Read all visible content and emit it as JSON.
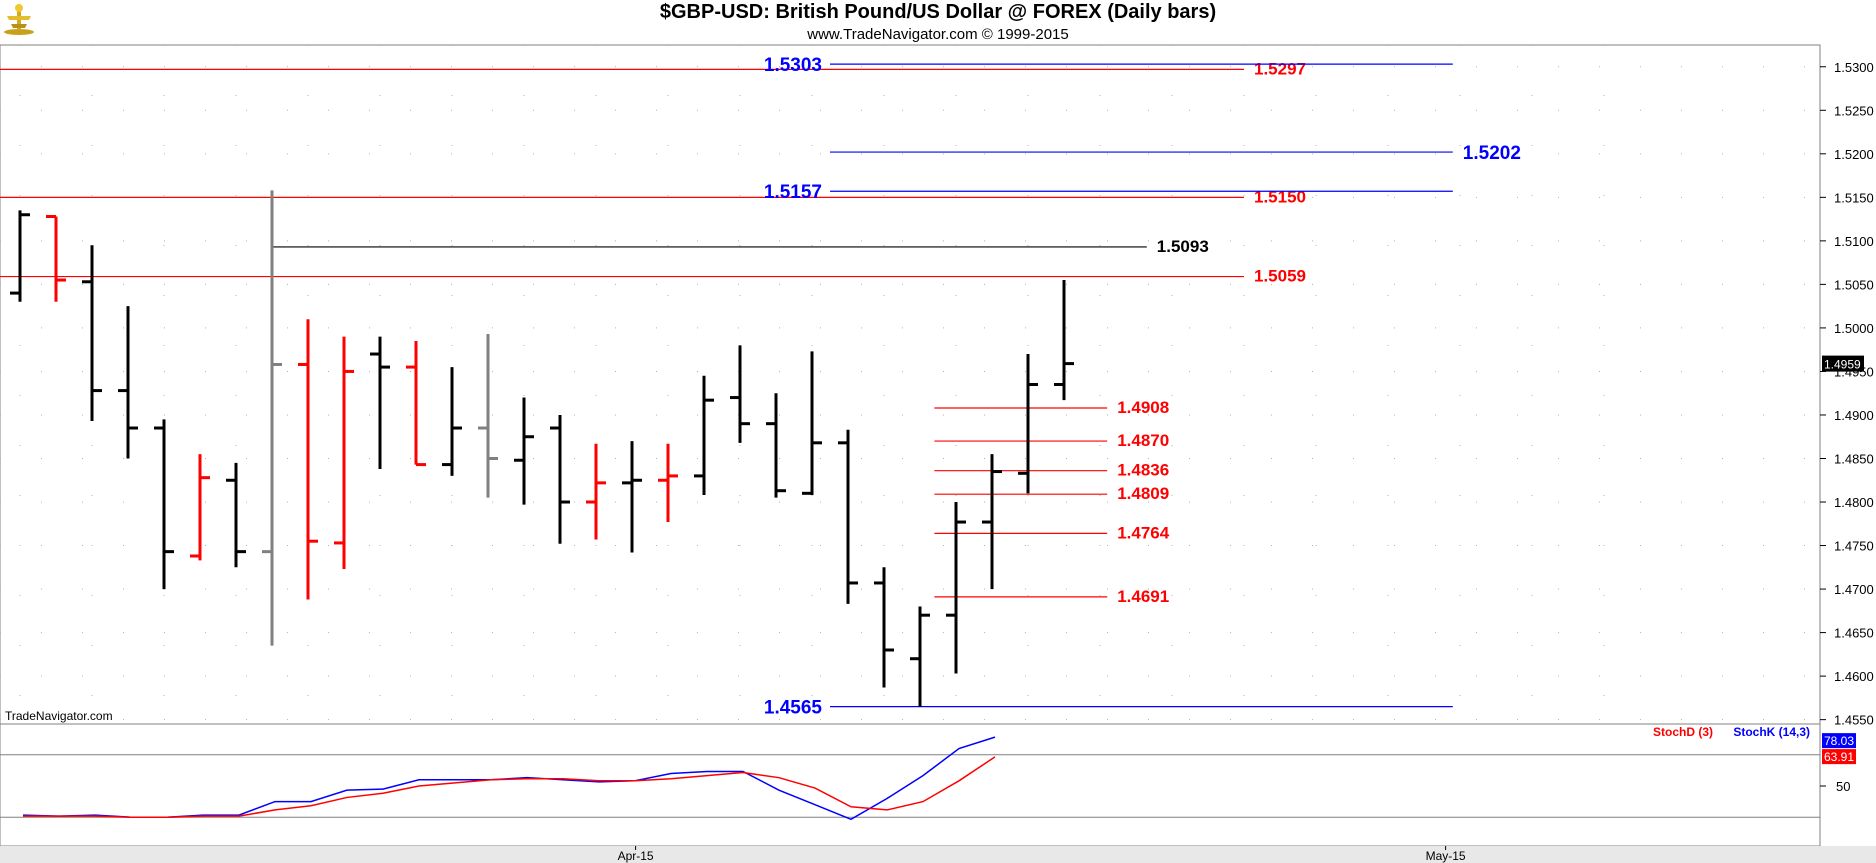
{
  "header": {
    "title": "$GBP-USD:  British Pound/US Dollar @ FOREX  (Daily bars)",
    "subtitle": "www.TradeNavigator.com © 1999-2015"
  },
  "watermark": "TradeNavigator.com",
  "colors": {
    "up_bar": "#000000",
    "down_bar": "#ff0000",
    "neutral_bar": "#808080",
    "red_level": "#ff0000",
    "blue_level": "#0000ff",
    "black_level": "#000000",
    "grid": "#b0b0b0",
    "panel_bg": "#ffffff",
    "frame_bg": "#e8e8e8"
  },
  "chart_data": [
    {
      "type": "ohlc",
      "title": "$GBP-USD:  British Pound/US Dollar @ FOREX  (Daily bars)",
      "ylim": [
        1.4545,
        1.5325
      ],
      "yticks": [
        "1.4550",
        "1.4600",
        "1.4650",
        "1.4700",
        "1.4750",
        "1.4800",
        "1.4850",
        "1.4900",
        "1.4950",
        "1.5000",
        "1.5050",
        "1.5100",
        "1.5150",
        "1.5200",
        "1.5250",
        "1.5300"
      ],
      "last_price_label": "1.4959",
      "xticks": [
        {
          "label": "Apr-15",
          "bar": 17.1
        },
        {
          "label": "May-15",
          "bar": 39.6
        }
      ],
      "bars": [
        {
          "o": 1.504,
          "h": 1.5135,
          "l": 1.503,
          "c": 1.513,
          "color": "up"
        },
        {
          "o": 1.5128,
          "h": 1.5128,
          "l": 1.503,
          "c": 1.5055,
          "color": "down"
        },
        {
          "o": 1.5053,
          "h": 1.5095,
          "l": 1.4893,
          "c": 1.4928,
          "color": "up"
        },
        {
          "o": 1.4928,
          "h": 1.5025,
          "l": 1.485,
          "c": 1.4885,
          "color": "up"
        },
        {
          "o": 1.4885,
          "h": 1.4895,
          "l": 1.47,
          "c": 1.4743,
          "color": "up"
        },
        {
          "o": 1.4738,
          "h": 1.4855,
          "l": 1.4733,
          "c": 1.4828,
          "color": "down"
        },
        {
          "o": 1.4825,
          "h": 1.4845,
          "l": 1.4725,
          "c": 1.4743,
          "color": "up"
        },
        {
          "o": 1.4743,
          "h": 1.5158,
          "l": 1.4635,
          "c": 1.4958,
          "color": "neutral"
        },
        {
          "o": 1.4958,
          "h": 1.501,
          "l": 1.4688,
          "c": 1.4755,
          "color": "down"
        },
        {
          "o": 1.4753,
          "h": 1.499,
          "l": 1.4723,
          "c": 1.495,
          "color": "down"
        },
        {
          "o": 1.497,
          "h": 1.499,
          "l": 1.4838,
          "c": 1.4955,
          "color": "up"
        },
        {
          "o": 1.4955,
          "h": 1.4985,
          "l": 1.4843,
          "c": 1.4843,
          "color": "down"
        },
        {
          "o": 1.4843,
          "h": 1.4955,
          "l": 1.483,
          "c": 1.4885,
          "color": "up"
        },
        {
          "o": 1.4885,
          "h": 1.4993,
          "l": 1.4805,
          "c": 1.485,
          "color": "neutral"
        },
        {
          "o": 1.4848,
          "h": 1.492,
          "l": 1.4797,
          "c": 1.4875,
          "color": "up"
        },
        {
          "o": 1.4885,
          "h": 1.49,
          "l": 1.4752,
          "c": 1.48,
          "color": "up"
        },
        {
          "o": 1.48,
          "h": 1.4867,
          "l": 1.4757,
          "c": 1.4822,
          "color": "down"
        },
        {
          "o": 1.4822,
          "h": 1.487,
          "l": 1.4742,
          "c": 1.4825,
          "color": "up"
        },
        {
          "o": 1.4825,
          "h": 1.4867,
          "l": 1.4777,
          "c": 1.483,
          "color": "down"
        },
        {
          "o": 1.483,
          "h": 1.4945,
          "l": 1.4808,
          "c": 1.4917,
          "color": "up"
        },
        {
          "o": 1.492,
          "h": 1.498,
          "l": 1.4868,
          "c": 1.489,
          "color": "up"
        },
        {
          "o": 1.489,
          "h": 1.4925,
          "l": 1.4805,
          "c": 1.4813,
          "color": "up"
        },
        {
          "o": 1.481,
          "h": 1.4973,
          "l": 1.4808,
          "c": 1.4868,
          "color": "up"
        },
        {
          "o": 1.4868,
          "h": 1.4883,
          "l": 1.4683,
          "c": 1.4707,
          "color": "up"
        },
        {
          "o": 1.4707,
          "h": 1.4725,
          "l": 1.4587,
          "c": 1.463,
          "color": "up"
        },
        {
          "o": 1.462,
          "h": 1.468,
          "l": 1.4565,
          "c": 1.467,
          "color": "up"
        },
        {
          "o": 1.467,
          "h": 1.48,
          "l": 1.4603,
          "c": 1.4777,
          "color": "up"
        },
        {
          "o": 1.4777,
          "h": 1.4855,
          "l": 1.47,
          "c": 1.4835,
          "color": "up"
        },
        {
          "o": 1.4833,
          "h": 1.497,
          "l": 1.481,
          "c": 1.4935,
          "color": "up"
        },
        {
          "o": 1.4935,
          "h": 1.5055,
          "l": 1.4917,
          "c": 1.4959,
          "color": "up"
        }
      ],
      "levels": [
        {
          "price": 1.5297,
          "label": "1.5297",
          "color": "red",
          "from_bar": -0.6,
          "to_bar": 34.0,
          "label_side": "right"
        },
        {
          "price": 1.515,
          "label": "1.5150",
          "color": "red",
          "from_bar": -0.6,
          "to_bar": 34.0,
          "label_side": "right"
        },
        {
          "price": 1.5059,
          "label": "1.5059",
          "color": "red",
          "from_bar": -0.6,
          "to_bar": 34.0,
          "label_side": "right"
        },
        {
          "price": 1.5093,
          "label": "1.5093",
          "color": "black",
          "from_bar": 7.0,
          "to_bar": 31.3,
          "label_side": "right"
        },
        {
          "price": 1.5303,
          "label": "1.5303",
          "color": "blue",
          "from_bar": 22.5,
          "to_bar": 39.8,
          "label_side": "left"
        },
        {
          "price": 1.5157,
          "label": "1.5157",
          "color": "blue",
          "from_bar": 22.5,
          "to_bar": 39.8,
          "label_side": "left"
        },
        {
          "price": 1.5202,
          "label": "1.5202",
          "color": "blue",
          "from_bar": 22.5,
          "to_bar": 39.8,
          "label_side": "right"
        },
        {
          "price": 1.4565,
          "label": "1.4565",
          "color": "blue",
          "from_bar": 22.5,
          "to_bar": 39.8,
          "label_side": "left"
        },
        {
          "price": 1.4908,
          "label": "1.4908",
          "color": "red",
          "from_bar": 25.4,
          "to_bar": 30.2,
          "label_side": "right"
        },
        {
          "price": 1.487,
          "label": "1.4870",
          "color": "red",
          "from_bar": 25.4,
          "to_bar": 30.2,
          "label_side": "right"
        },
        {
          "price": 1.4836,
          "label": "1.4836",
          "color": "red",
          "from_bar": 25.4,
          "to_bar": 30.2,
          "label_side": "right"
        },
        {
          "price": 1.4809,
          "label": "1.4809",
          "color": "red",
          "from_bar": 25.4,
          "to_bar": 30.2,
          "label_side": "right"
        },
        {
          "price": 1.4764,
          "label": "1.4764",
          "color": "red",
          "from_bar": 25.4,
          "to_bar": 30.2,
          "label_side": "right"
        },
        {
          "price": 1.4691,
          "label": "1.4691",
          "color": "red",
          "from_bar": 25.4,
          "to_bar": 30.2,
          "label_side": "right"
        }
      ]
    },
    {
      "type": "line",
      "title": "",
      "legend": [
        "StochD (3)",
        "StochK (14,3)"
      ],
      "ylim": [
        0,
        100
      ],
      "reference_lines": [
        80,
        20
      ],
      "yticks": [
        "50"
      ],
      "last_labels": {
        "k": "78.03",
        "d": "63.91"
      },
      "series": [
        {
          "name": "StochK (14,3)",
          "color": "blue",
          "values": [
            22,
            21,
            22,
            20,
            20,
            22,
            22,
            35,
            35,
            46,
            47,
            56,
            56,
            56,
            58,
            56,
            54,
            55,
            62,
            64,
            64,
            46,
            32,
            18,
            38,
            60,
            86,
            97
          ]
        },
        {
          "name": "StochD (3)",
          "color": "red",
          "values": [
            21,
            21,
            21,
            20,
            20,
            21,
            21,
            27,
            31,
            39,
            43,
            50,
            53,
            56,
            57,
            57,
            55,
            55,
            57,
            60,
            63,
            58,
            48,
            30,
            27,
            35,
            55,
            78
          ]
        }
      ],
      "series_start_bar": 0
    }
  ]
}
